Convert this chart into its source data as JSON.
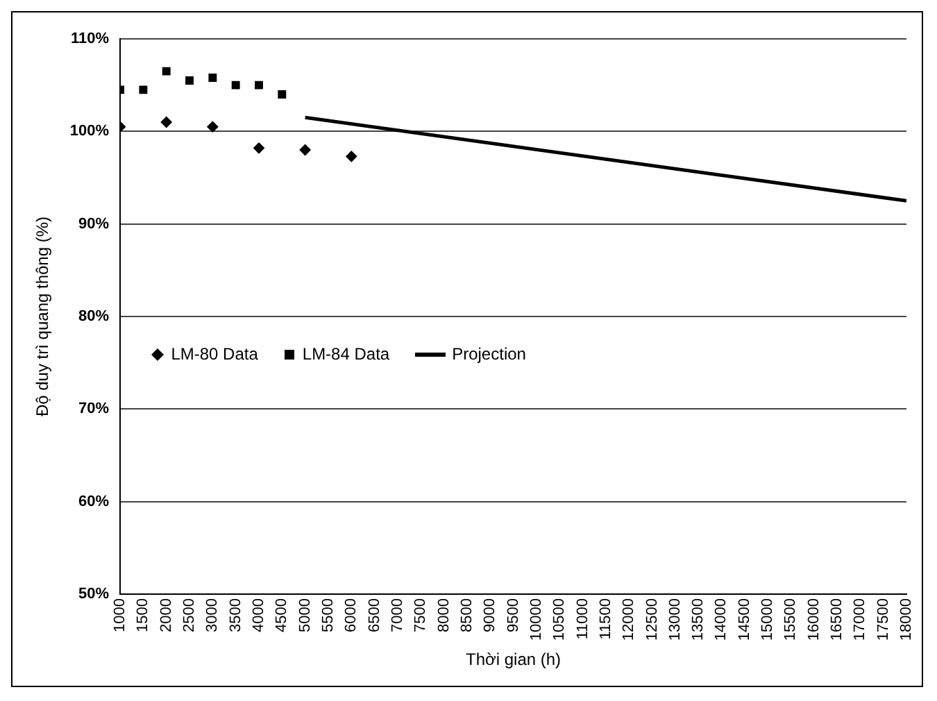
{
  "chart_data": {
    "type": "scatter",
    "ylabel": "Độ duy trì quang thông (%)",
    "xlabel": "Thời gian (h)",
    "xlim": [
      1000,
      18000
    ],
    "xticks": [
      1000,
      1500,
      2000,
      2500,
      3000,
      3500,
      4000,
      4500,
      5000,
      5500,
      6000,
      6500,
      7000,
      7500,
      8000,
      8500,
      9000,
      9500,
      10000,
      10500,
      11000,
      11500,
      12000,
      12500,
      13000,
      13500,
      14000,
      14500,
      15000,
      15500,
      16000,
      16500,
      17000,
      17500,
      18000
    ],
    "ylim": [
      50,
      110
    ],
    "yticks": [
      {
        "value": 50,
        "label": "50%"
      },
      {
        "value": 60,
        "label": "60%"
      },
      {
        "value": 70,
        "label": "70%"
      },
      {
        "value": 80,
        "label": "80%"
      },
      {
        "value": 90,
        "label": "90%"
      },
      {
        "value": 100,
        "label": "100%"
      },
      {
        "value": 110,
        "label": "110%"
      }
    ],
    "grid": "y",
    "legend": "left",
    "series": [
      {
        "name": "LM-80 Data",
        "marker": "diamond",
        "color": "#000000",
        "x": [
          1000,
          2000,
          3000,
          4000,
          5000,
          6000
        ],
        "values": [
          100.5,
          101,
          100.5,
          98.2,
          98,
          97.3
        ]
      },
      {
        "name": "LM-84 Data",
        "marker": "square",
        "color": "#000000",
        "x": [
          1000,
          1500,
          2000,
          2500,
          3000,
          3500,
          4000,
          4500
        ],
        "values": [
          104.5,
          104.5,
          106.5,
          105.5,
          105.8,
          105,
          105,
          104
        ]
      },
      {
        "name": "Projection",
        "type": "line",
        "marker": "none",
        "line_style": "solid",
        "color": "#000000",
        "x": [
          5000,
          18000
        ],
        "values": [
          101.5,
          92.5
        ]
      }
    ]
  }
}
